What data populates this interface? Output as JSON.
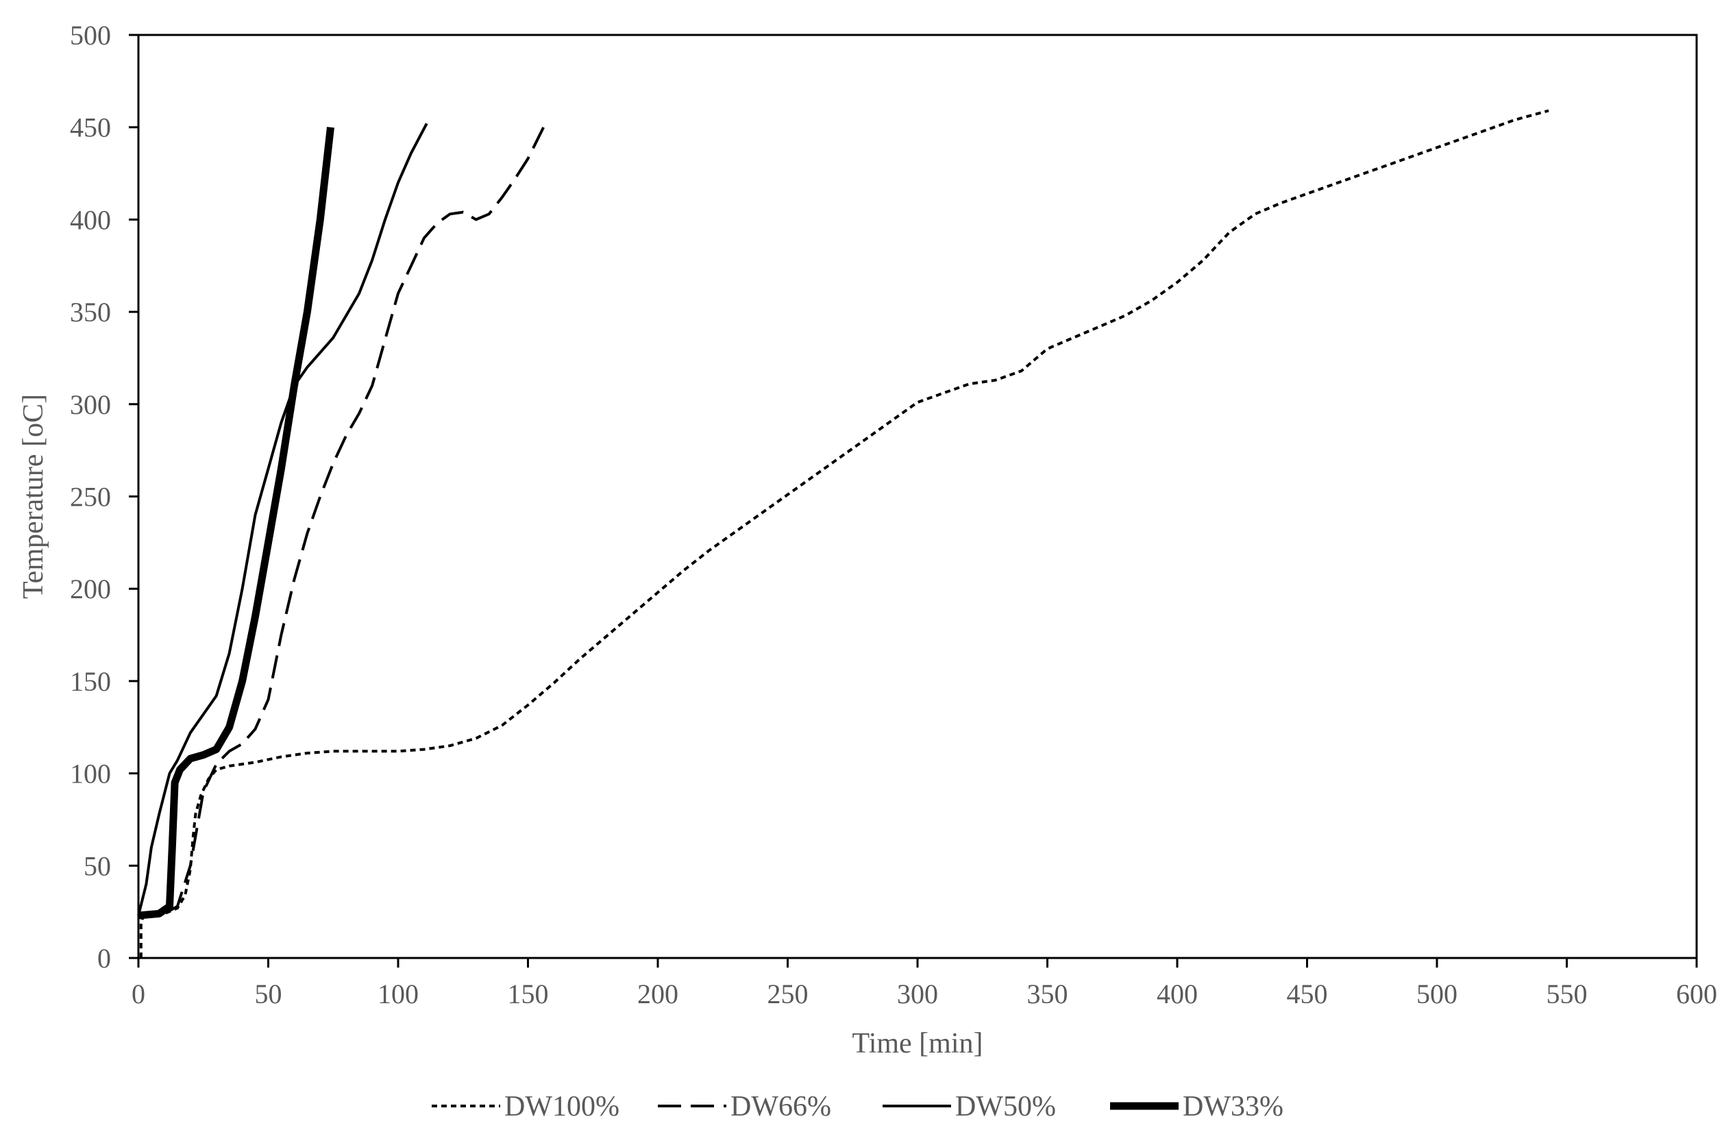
{
  "chart_data": {
    "type": "line",
    "title": "",
    "xlabel": "Time [min]",
    "ylabel": "Temperature [oC]",
    "xlim": [
      0,
      600
    ],
    "ylim": [
      0,
      500
    ],
    "xticks": [
      "0",
      "50",
      "100",
      "150",
      "200",
      "250",
      "300",
      "350",
      "400",
      "450",
      "500",
      "550",
      "600"
    ],
    "yticks": [
      "0",
      "50",
      "100",
      "150",
      "200",
      "250",
      "300",
      "350",
      "400",
      "450",
      "500"
    ],
    "grid": false,
    "legend_position": "bottom",
    "series": [
      {
        "name": "DW100%",
        "style": "dotted",
        "color": "#000000",
        "points": [
          [
            1,
            0
          ],
          [
            1,
            18
          ],
          [
            2,
            24
          ],
          [
            5,
            23
          ],
          [
            10,
            24
          ],
          [
            15,
            27
          ],
          [
            18,
            34
          ],
          [
            20,
            48
          ],
          [
            21,
            65
          ],
          [
            22,
            78
          ],
          [
            24,
            88
          ],
          [
            27,
            97
          ],
          [
            30,
            102
          ],
          [
            35,
            104
          ],
          [
            45,
            106
          ],
          [
            55,
            109
          ],
          [
            65,
            111
          ],
          [
            75,
            112
          ],
          [
            85,
            112
          ],
          [
            100,
            112
          ],
          [
            110,
            113
          ],
          [
            120,
            115
          ],
          [
            130,
            119
          ],
          [
            140,
            126
          ],
          [
            150,
            137
          ],
          [
            160,
            149
          ],
          [
            170,
            162
          ],
          [
            180,
            174
          ],
          [
            190,
            186
          ],
          [
            200,
            198
          ],
          [
            210,
            210
          ],
          [
            220,
            221
          ],
          [
            230,
            231
          ],
          [
            240,
            241
          ],
          [
            250,
            251
          ],
          [
            260,
            261
          ],
          [
            270,
            271
          ],
          [
            280,
            281
          ],
          [
            290,
            291
          ],
          [
            300,
            301
          ],
          [
            310,
            306
          ],
          [
            320,
            311
          ],
          [
            330,
            313
          ],
          [
            340,
            318
          ],
          [
            350,
            330
          ],
          [
            360,
            336
          ],
          [
            370,
            342
          ],
          [
            380,
            348
          ],
          [
            390,
            356
          ],
          [
            400,
            366
          ],
          [
            410,
            378
          ],
          [
            420,
            393
          ],
          [
            430,
            403
          ],
          [
            440,
            409
          ],
          [
            450,
            414
          ],
          [
            460,
            419
          ],
          [
            470,
            424
          ],
          [
            480,
            429
          ],
          [
            490,
            434
          ],
          [
            500,
            439
          ],
          [
            510,
            444
          ],
          [
            520,
            449
          ],
          [
            530,
            454
          ],
          [
            543,
            459
          ]
        ]
      },
      {
        "name": "DW66%",
        "style": "dashed",
        "color": "#000000",
        "points": [
          [
            0,
            23
          ],
          [
            10,
            24
          ],
          [
            15,
            28
          ],
          [
            20,
            50
          ],
          [
            25,
            90
          ],
          [
            30,
            105
          ],
          [
            35,
            112
          ],
          [
            40,
            116
          ],
          [
            45,
            124
          ],
          [
            50,
            140
          ],
          [
            55,
            175
          ],
          [
            60,
            205
          ],
          [
            65,
            230
          ],
          [
            70,
            250
          ],
          [
            75,
            268
          ],
          [
            80,
            283
          ],
          [
            85,
            295
          ],
          [
            90,
            310
          ],
          [
            95,
            335
          ],
          [
            100,
            360
          ],
          [
            105,
            375
          ],
          [
            110,
            390
          ],
          [
            115,
            398
          ],
          [
            120,
            403
          ],
          [
            125,
            404
          ],
          [
            130,
            400
          ],
          [
            135,
            403
          ],
          [
            140,
            412
          ],
          [
            145,
            422
          ],
          [
            150,
            433
          ],
          [
            156,
            450
          ]
        ]
      },
      {
        "name": "DW50%",
        "style": "solid",
        "color": "#000000",
        "points": [
          [
            0,
            23
          ],
          [
            3,
            40
          ],
          [
            5,
            60
          ],
          [
            8,
            78
          ],
          [
            12,
            100
          ],
          [
            15,
            107
          ],
          [
            20,
            122
          ],
          [
            25,
            132
          ],
          [
            30,
            142
          ],
          [
            35,
            165
          ],
          [
            40,
            200
          ],
          [
            45,
            240
          ],
          [
            50,
            265
          ],
          [
            55,
            290
          ],
          [
            60,
            310
          ],
          [
            65,
            320
          ],
          [
            70,
            328
          ],
          [
            75,
            336
          ],
          [
            80,
            348
          ],
          [
            85,
            360
          ],
          [
            90,
            378
          ],
          [
            95,
            400
          ],
          [
            100,
            420
          ],
          [
            105,
            436
          ],
          [
            111,
            452
          ]
        ]
      },
      {
        "name": "DW33%",
        "style": "thick",
        "color": "#000000",
        "points": [
          [
            0,
            23
          ],
          [
            8,
            24
          ],
          [
            12,
            28
          ],
          [
            13,
            60
          ],
          [
            14,
            95
          ],
          [
            16,
            102
          ],
          [
            20,
            108
          ],
          [
            25,
            110
          ],
          [
            30,
            113
          ],
          [
            35,
            125
          ],
          [
            40,
            150
          ],
          [
            45,
            185
          ],
          [
            50,
            225
          ],
          [
            55,
            265
          ],
          [
            60,
            310
          ],
          [
            65,
            350
          ],
          [
            70,
            400
          ],
          [
            74,
            450
          ]
        ]
      }
    ]
  }
}
